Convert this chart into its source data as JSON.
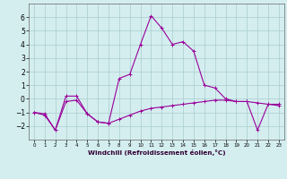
{
  "xlabel": "Windchill (Refroidissement éolien,°C)",
  "hours": [
    0,
    1,
    2,
    3,
    4,
    5,
    6,
    7,
    8,
    9,
    10,
    11,
    12,
    13,
    14,
    15,
    16,
    17,
    18,
    19,
    20,
    21,
    22,
    23
  ],
  "windchill_line": [
    -1.0,
    -1.2,
    -2.3,
    0.2,
    0.2,
    -1.1,
    -1.7,
    -1.8,
    1.5,
    1.8,
    4.0,
    6.1,
    5.2,
    4.0,
    4.2,
    3.5,
    1.0,
    0.8,
    0.0,
    -0.2,
    -0.2,
    -2.3,
    -0.4,
    -0.5
  ],
  "temp_line": [
    -1.0,
    -1.1,
    -2.3,
    -0.2,
    -0.1,
    -1.1,
    -1.7,
    -1.8,
    -1.5,
    -1.2,
    -0.9,
    -0.7,
    -0.6,
    -0.5,
    -0.4,
    -0.3,
    -0.2,
    -0.1,
    -0.1,
    -0.2,
    -0.2,
    -0.3,
    -0.4,
    -0.4
  ],
  "line_color": "#990099",
  "bg_color": "#d4eef0",
  "grid_color": "#aacccc",
  "ylim": [
    -3,
    7
  ],
  "yticks": [
    -2,
    -1,
    0,
    1,
    2,
    3,
    4,
    5,
    6
  ],
  "xlim": [
    -0.5,
    23.5
  ]
}
